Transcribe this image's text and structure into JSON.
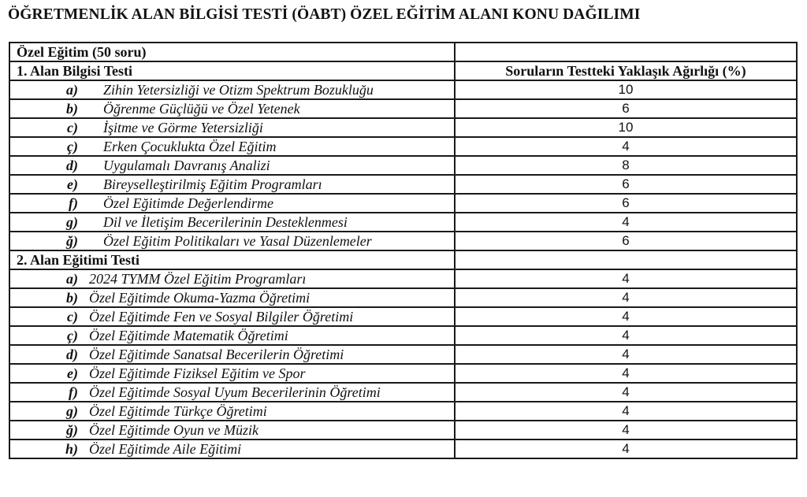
{
  "title": "ÖĞRETMENLİK ALAN BİLGİSİ TESTİ (ÖABT) ÖZEL EĞİTİM ALANI KONU DAĞILIMI",
  "table": {
    "top_label": "Özel Eğitim (50 soru)",
    "weight_header": "Soruların Testteki Yaklaşık Ağırlığı (%)",
    "sections": [
      {
        "title": "1. Alan Bilgisi Testi",
        "items": [
          {
            "letter": "a)",
            "topic": "Zihin Yetersizliği ve Otizm Spektrum Bozukluğu",
            "weight": "10"
          },
          {
            "letter": "b)",
            "topic": "Öğrenme Güçlüğü ve Özel Yetenek",
            "weight": "6"
          },
          {
            "letter": "c)",
            "topic": "İşitme ve Görme Yetersizliği",
            "weight": "10"
          },
          {
            "letter": "ç)",
            "topic": "Erken Çocuklukta Özel Eğitim",
            "weight": "4"
          },
          {
            "letter": "d)",
            "topic": "Uygulamalı Davranış Analizi",
            "weight": "8"
          },
          {
            "letter": "e)",
            "topic": "Bireyselleştirilmiş Eğitim Programları",
            "weight": "6"
          },
          {
            "letter": "f)",
            "topic": "Özel Eğitimde Değerlendirme",
            "weight": "6"
          },
          {
            "letter": "g)",
            "topic": "Dil ve İletişim Becerilerinin Desteklenmesi",
            "weight": "4"
          },
          {
            "letter": "ğ)",
            "topic": "Özel Eğitim Politikaları ve Yasal Düzenlemeler",
            "weight": "6"
          }
        ]
      },
      {
        "title": "2. Alan Eğitimi Testi",
        "items": [
          {
            "letter": "a)",
            "topic": "2024 TYMM Özel Eğitim Programları",
            "weight": "4"
          },
          {
            "letter": "b)",
            "topic": "Özel Eğitimde Okuma-Yazma Öğretimi",
            "weight": "4"
          },
          {
            "letter": "c)",
            "topic": "Özel Eğitimde Fen ve Sosyal Bilgiler Öğretimi",
            "weight": "4"
          },
          {
            "letter": "ç)",
            "topic": "Özel Eğitimde Matematik Öğretimi",
            "weight": "4"
          },
          {
            "letter": "d)",
            "topic": "Özel Eğitimde Sanatsal Becerilerin Öğretimi",
            "weight": "4"
          },
          {
            "letter": "e)",
            "topic": "Özel Eğitimde Fiziksel Eğitim ve Spor",
            "weight": "4"
          },
          {
            "letter": "f)",
            "topic": "Özel Eğitimde Sosyal Uyum Becerilerinin Öğretimi",
            "weight": "4"
          },
          {
            "letter": "g)",
            "topic": "Özel Eğitimde Türkçe Öğretimi",
            "weight": "4"
          },
          {
            "letter": "ğ)",
            "topic": "Özel Eğitimde Oyun ve Müzik",
            "weight": "4"
          },
          {
            "letter": "h)",
            "topic": "Özel Eğitimde Aile Eğitimi",
            "weight": "4"
          }
        ]
      }
    ]
  }
}
